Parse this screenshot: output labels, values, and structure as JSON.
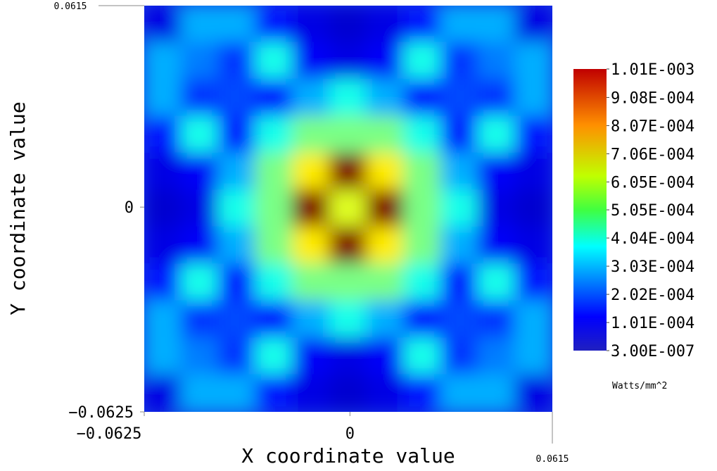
{
  "chart_data": {
    "type": "heatmap",
    "x_label": "X coordinate value",
    "y_label": "Y coordinate value",
    "xlim": [
      -0.0625,
      0.0615
    ],
    "ylim": [
      -0.0625,
      0.0615
    ],
    "xticks": [
      {
        "value": -0.0625,
        "label": "−0.0625"
      },
      0,
      0.0615
    ],
    "yticks": [
      {
        "value": -0.0625,
        "label": "−0.0625"
      },
      0,
      0.0615
    ],
    "z": [
      [
        0.0001,
        0.0003,
        0.0003,
        0.00015,
        0.0001,
        8e-05,
        0.0001,
        0.00015,
        0.0003,
        0.0003,
        0.0001
      ],
      [
        0.0003,
        0.00025,
        0.00018,
        0.0004,
        0.00012,
        0.0001,
        0.00012,
        0.0004,
        0.00018,
        0.00025,
        0.0003
      ],
      [
        0.0003,
        0.00018,
        0.0002,
        0.00015,
        0.0003,
        0.0004,
        0.0003,
        0.00015,
        0.0002,
        0.00018,
        0.0003
      ],
      [
        0.00015,
        0.0004,
        0.00015,
        0.0004,
        0.0005,
        0.0005,
        0.0005,
        0.0004,
        0.00015,
        0.0004,
        0.00015
      ],
      [
        0.0001,
        0.00012,
        0.0003,
        0.0005,
        0.00065,
        0.00101,
        0.00065,
        0.0005,
        0.0003,
        0.00012,
        0.0001
      ],
      [
        8e-05,
        0.0001,
        0.0004,
        0.0005,
        0.00101,
        0.0006,
        0.00101,
        0.0005,
        0.0004,
        0.0001,
        8e-05
      ],
      [
        0.0001,
        0.00012,
        0.0003,
        0.0005,
        0.00065,
        0.00101,
        0.00065,
        0.0005,
        0.0003,
        0.00012,
        0.0001
      ],
      [
        0.00015,
        0.0004,
        0.00015,
        0.0004,
        0.0005,
        0.0005,
        0.0005,
        0.0004,
        0.00015,
        0.0004,
        0.00015
      ],
      [
        0.0003,
        0.00018,
        0.0002,
        0.00015,
        0.0003,
        0.0004,
        0.0003,
        0.00015,
        0.0002,
        0.00018,
        0.0003
      ],
      [
        0.0003,
        0.00025,
        0.00018,
        0.0004,
        0.00012,
        0.0001,
        0.00012,
        0.0004,
        0.00018,
        0.00025,
        0.0003
      ],
      [
        0.0001,
        0.0003,
        0.0003,
        0.00015,
        0.0001,
        8e-05,
        0.0001,
        0.00015,
        0.0003,
        0.0003,
        0.0001
      ]
    ],
    "zlim": [
      3e-07,
      0.00101
    ],
    "zticks": [
      {
        "value": 3e-07,
        "label": "3.00E-007"
      },
      {
        "value": 0.000101,
        "label": "1.01E-004"
      },
      {
        "value": 0.000202,
        "label": "2.02E-004"
      },
      {
        "value": 0.000303,
        "label": "3.03E-004"
      },
      {
        "value": 0.000404,
        "label": "4.04E-004"
      },
      {
        "value": 0.000505,
        "label": "5.05E-004"
      },
      {
        "value": 0.000605,
        "label": "6.05E-004"
      },
      {
        "value": 0.000706,
        "label": "7.06E-004"
      },
      {
        "value": 0.000807,
        "label": "8.07E-004"
      },
      {
        "value": 0.000908,
        "label": "9.08E-004"
      },
      {
        "value": 0.00101,
        "label": "1.01E-003"
      }
    ],
    "colorbar_label": "Watts/mm^2",
    "colormap": "jet"
  }
}
